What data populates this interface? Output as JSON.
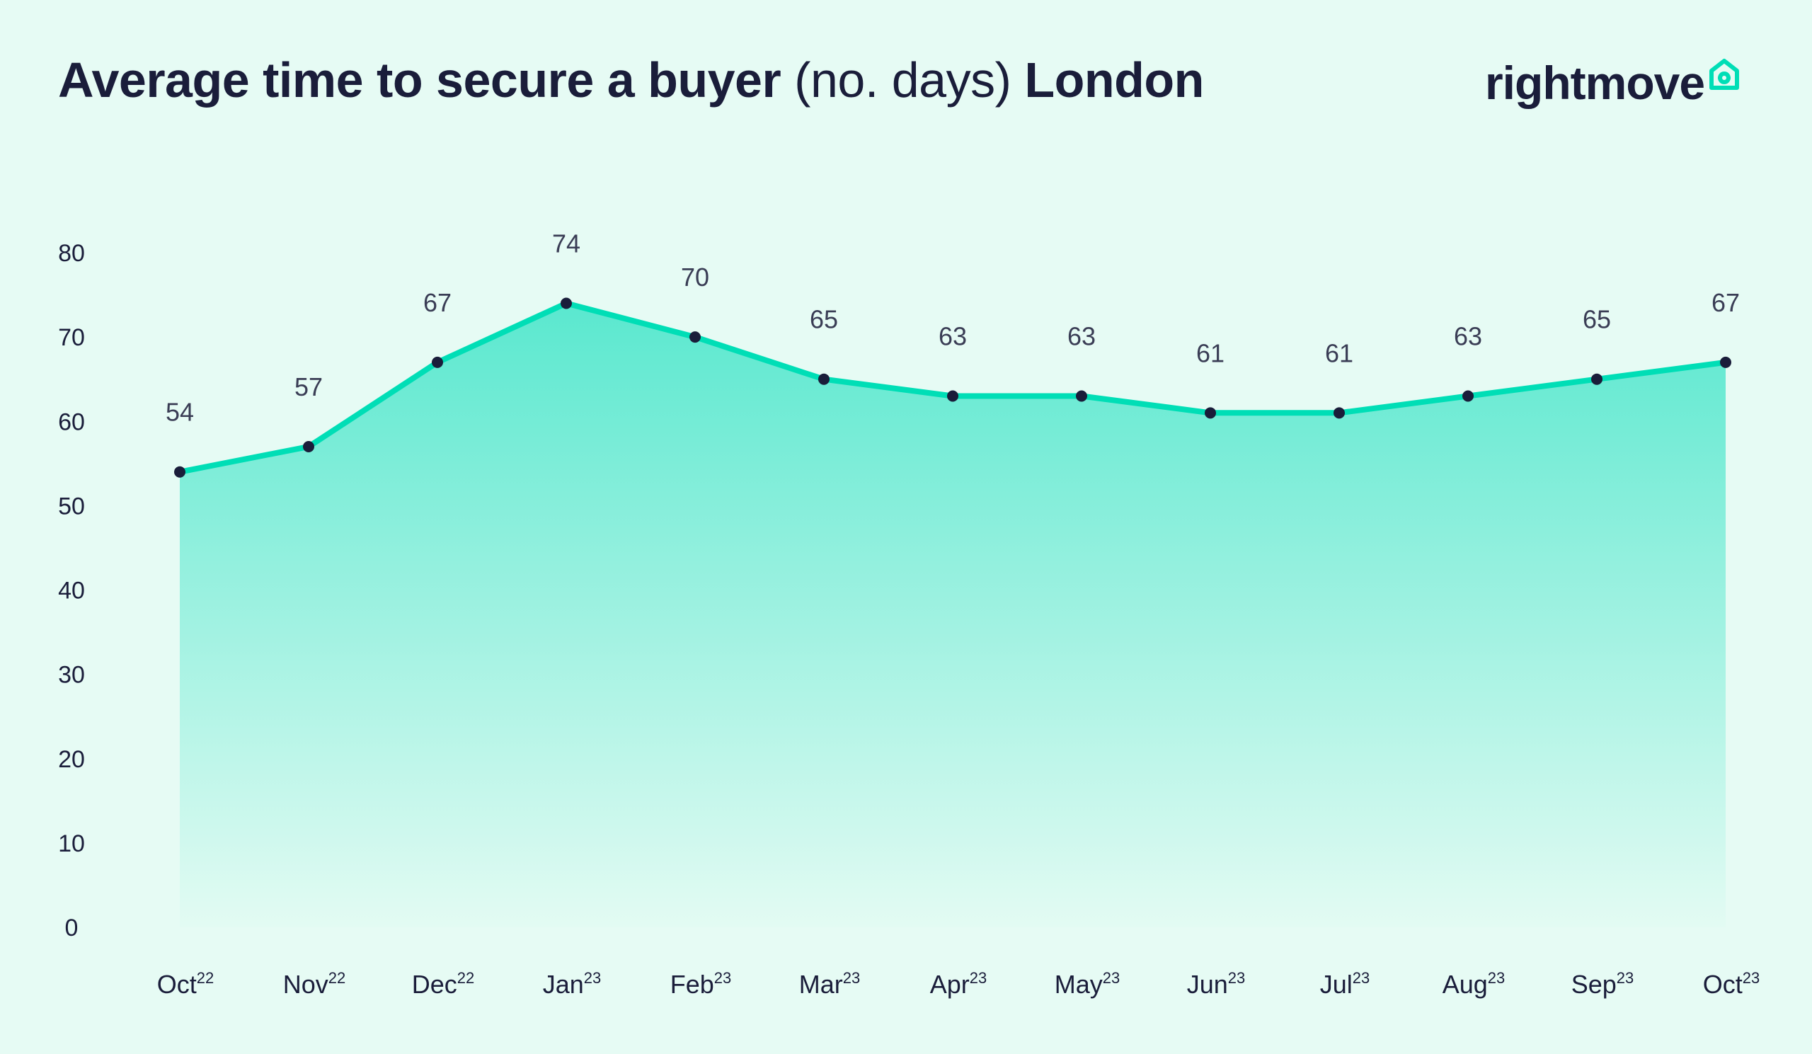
{
  "title": {
    "part1": "Average time to secure a buyer",
    "part2": "(no. days)",
    "part3": "London"
  },
  "logo": {
    "text": "rightmove",
    "icon": "house-icon",
    "accent_color": "#00deb6"
  },
  "chart_data": {
    "type": "area",
    "categories": [
      "Oct22",
      "Nov22",
      "Dec22",
      "Jan23",
      "Feb23",
      "Mar23",
      "Apr23",
      "May23",
      "Jun23",
      "Jul23",
      "Aug23",
      "Sep23",
      "Oct23"
    ],
    "category_labels": [
      {
        "month": "Oct",
        "year": "22"
      },
      {
        "month": "Nov",
        "year": "22"
      },
      {
        "month": "Dec",
        "year": "22"
      },
      {
        "month": "Jan",
        "year": "23"
      },
      {
        "month": "Feb",
        "year": "23"
      },
      {
        "month": "Mar",
        "year": "23"
      },
      {
        "month": "Apr",
        "year": "23"
      },
      {
        "month": "May",
        "year": "23"
      },
      {
        "month": "Jun",
        "year": "23"
      },
      {
        "month": "Jul",
        "year": "23"
      },
      {
        "month": "Aug",
        "year": "23"
      },
      {
        "month": "Sep",
        "year": "23"
      },
      {
        "month": "Oct",
        "year": "23"
      }
    ],
    "values": [
      54,
      57,
      67,
      74,
      70,
      65,
      63,
      63,
      61,
      61,
      63,
      65,
      67
    ],
    "ylim": [
      0,
      80
    ],
    "yticks": [
      0,
      10,
      20,
      30,
      40,
      50,
      60,
      70,
      80
    ],
    "grid": false,
    "legend": "none",
    "line_color": "#00deb6",
    "marker_color": "#1a1d3a",
    "fill_top_color": "#5ae8cf",
    "fill_bottom_color": "#e3fbf3"
  }
}
